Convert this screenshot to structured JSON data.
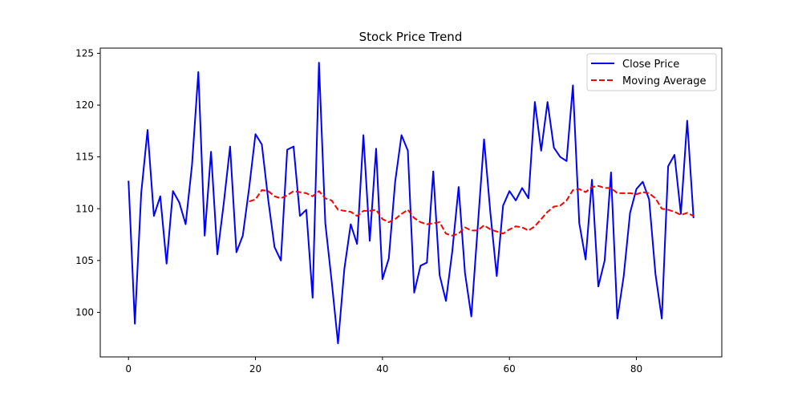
{
  "chart_data": {
    "type": "line",
    "title": "Stock Price Trend",
    "xlabel": "",
    "ylabel": "",
    "xlim": [
      -4.45,
      93.45
    ],
    "ylim": [
      95.7,
      125.5
    ],
    "xticks": [
      0,
      20,
      40,
      60,
      80
    ],
    "yticks": [
      100,
      105,
      110,
      115,
      120,
      125
    ],
    "grid": false,
    "legend_position": "top-right",
    "series": [
      {
        "name": "Close Price",
        "color": "#0000ff",
        "style": "solid",
        "x": [
          0,
          1,
          2,
          3,
          4,
          5,
          6,
          7,
          8,
          9,
          10,
          11,
          12,
          13,
          14,
          15,
          16,
          17,
          18,
          19,
          20,
          21,
          22,
          23,
          24,
          25,
          26,
          27,
          28,
          29,
          30,
          31,
          32,
          33,
          34,
          35,
          36,
          37,
          38,
          39,
          40,
          41,
          42,
          43,
          44,
          45,
          46,
          47,
          48,
          49,
          50,
          51,
          52,
          53,
          54,
          55,
          56,
          57,
          58,
          59,
          60,
          61,
          62,
          63,
          64,
          65,
          66,
          67,
          68,
          69,
          70,
          71,
          72,
          73,
          74,
          75,
          76,
          77,
          78,
          79,
          80,
          81,
          82,
          83,
          84,
          85,
          86,
          87,
          88,
          89
        ],
        "values": [
          112.7,
          98.9,
          111.5,
          117.6,
          109.3,
          111.2,
          104.7,
          111.7,
          110.6,
          108.5,
          114.2,
          123.2,
          107.4,
          115.5,
          105.6,
          110.5,
          116.0,
          105.8,
          107.4,
          112.0,
          117.2,
          116.2,
          110.9,
          106.3,
          105.0,
          115.7,
          116.0,
          109.3,
          109.9,
          101.4,
          124.1,
          108.6,
          103.0,
          97.0,
          104.2,
          108.5,
          106.6,
          117.1,
          106.9,
          115.8,
          103.2,
          105.2,
          112.6,
          117.1,
          115.6,
          101.9,
          104.5,
          104.8,
          113.6,
          103.6,
          101.1,
          105.9,
          112.1,
          103.8,
          99.6,
          108.2,
          116.7,
          109.6,
          103.5,
          110.3,
          111.7,
          110.8,
          112.0,
          111.0,
          120.3,
          115.6,
          120.3,
          115.9,
          115.0,
          114.6,
          121.9,
          108.6,
          105.1,
          112.8,
          102.5,
          105.0,
          113.5,
          99.4,
          103.5,
          109.6,
          111.9,
          112.6,
          110.9,
          103.7,
          99.4,
          114.1,
          115.2,
          109.5,
          118.5,
          109.1
        ]
      },
      {
        "name": "Moving Average",
        "color": "#ff0000",
        "style": "dashed",
        "x": [
          19,
          20,
          21,
          22,
          23,
          24,
          25,
          26,
          27,
          28,
          29,
          30,
          31,
          32,
          33,
          34,
          35,
          36,
          37,
          38,
          39,
          40,
          41,
          42,
          43,
          44,
          45,
          46,
          47,
          48,
          49,
          50,
          51,
          52,
          53,
          54,
          55,
          56,
          57,
          58,
          59,
          60,
          61,
          62,
          63,
          64,
          65,
          66,
          67,
          68,
          69,
          70,
          71,
          72,
          73,
          74,
          75,
          76,
          77,
          78,
          79,
          80,
          81,
          82,
          83,
          84,
          85,
          86,
          87,
          88,
          89
        ],
        "values": [
          110.7,
          110.9,
          111.8,
          111.7,
          111.2,
          111.0,
          111.3,
          111.7,
          111.6,
          111.5,
          111.2,
          111.7,
          111.0,
          110.8,
          109.9,
          109.8,
          109.7,
          109.3,
          109.8,
          109.8,
          109.9,
          109.0,
          108.7,
          109.0,
          109.5,
          109.9,
          109.1,
          108.7,
          108.5,
          108.6,
          108.7,
          107.6,
          107.4,
          107.6,
          108.2,
          107.9,
          107.9,
          108.4,
          108.0,
          107.8,
          107.6,
          108.0,
          108.3,
          108.2,
          107.9,
          108.3,
          109.0,
          109.7,
          110.2,
          110.3,
          110.8,
          111.8,
          111.9,
          111.6,
          112.1,
          112.2,
          112.0,
          112.0,
          111.5,
          111.5,
          111.5,
          111.4,
          111.6,
          111.5,
          111.0,
          110.0,
          109.9,
          109.7,
          109.4,
          109.6,
          109.3
        ]
      }
    ]
  }
}
